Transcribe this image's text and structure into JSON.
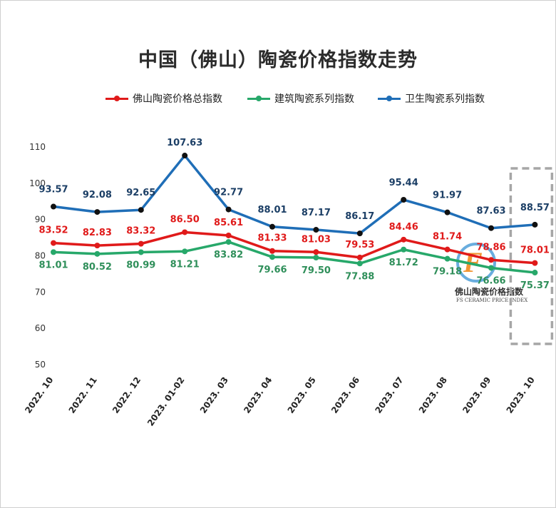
{
  "title": "中国（佛山）陶瓷价格指数走势",
  "logo": {
    "cn": "佛山陶瓷价格指数",
    "en": "FS CERAMIC PRICE INDEX",
    "glyph": "F"
  },
  "chart_data": {
    "type": "line",
    "title": "中国（佛山）陶瓷价格指数走势",
    "categories": [
      "2022. 10",
      "2022. 11",
      "2022. 12",
      "2023. 01-02",
      "2023. 03",
      "2023. 04",
      "2023. 05",
      "2023. 06",
      "2023. 07",
      "2023. 08",
      "2023. 09",
      "2023. 10"
    ],
    "ylim": [
      50,
      110
    ],
    "yticks": [
      50,
      60,
      70,
      80,
      90,
      100,
      110
    ],
    "grid": false,
    "legend": "top",
    "series": [
      {
        "name": "佛山陶瓷价格总指数",
        "color": "#e01a1a",
        "label_color": "#e01a1a",
        "values": [
          83.52,
          82.83,
          83.32,
          86.5,
          85.61,
          81.33,
          81.03,
          79.53,
          84.46,
          81.74,
          78.86,
          78.01
        ],
        "labels": [
          "83.52",
          "82.83",
          "83.32",
          "86.50",
          "85.61",
          "81.33",
          "81.03",
          "79.53",
          "84.46",
          "81.74",
          "78.86",
          "78.01"
        ]
      },
      {
        "name": "建筑陶瓷系列指数",
        "color": "#27a86a",
        "label_color": "#2f8f5a",
        "values": [
          81.01,
          80.52,
          80.99,
          81.21,
          83.82,
          79.66,
          79.5,
          77.88,
          81.72,
          79.18,
          76.66,
          75.37
        ],
        "labels": [
          "81.01",
          "80.52",
          "80.99",
          "81.21",
          "83.82",
          "79.66",
          "79.50",
          "77.88",
          "81.72",
          "79.18",
          "76.66",
          "75.37"
        ]
      },
      {
        "name": "卫生陶瓷系列指数",
        "color": "#1f6eb7",
        "label_color": "#1c3f66",
        "values": [
          93.57,
          92.08,
          92.65,
          107.63,
          92.77,
          88.01,
          87.17,
          86.17,
          95.44,
          91.97,
          87.63,
          88.57
        ],
        "labels": [
          "93.57",
          "92.08",
          "92.65",
          "107.63",
          "92.77",
          "88.01",
          "87.17",
          "86.17",
          "95.44",
          "91.97",
          "87.63",
          "88.57"
        ]
      }
    ],
    "highlight": {
      "category": "2023. 10",
      "style": "dashed-box",
      "color": "#a6a6a6"
    }
  }
}
